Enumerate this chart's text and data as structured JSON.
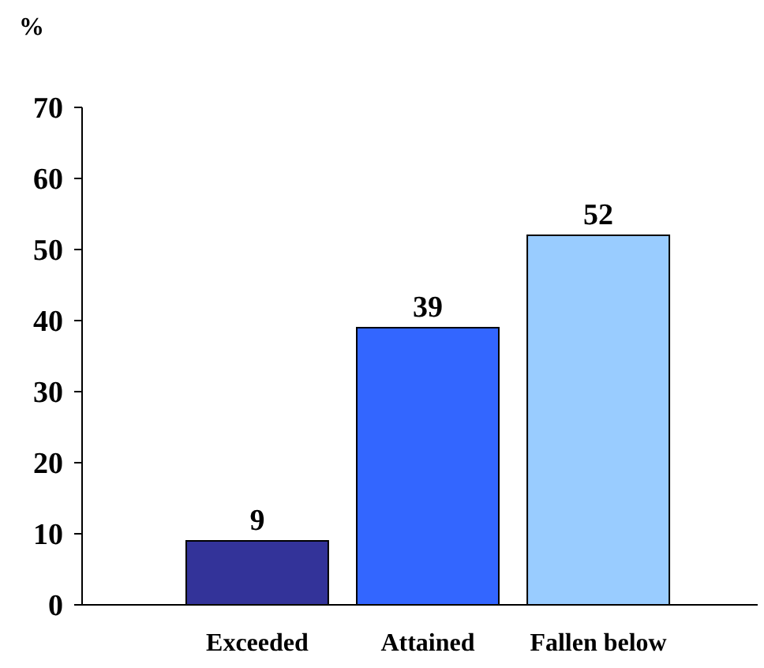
{
  "chart_data": {
    "type": "bar",
    "ylabel": "%",
    "categories": [
      "Exceeded",
      "Attained",
      "Fallen below"
    ],
    "values": [
      9,
      39,
      52
    ],
    "colors": [
      "#333399",
      "#3366ff",
      "#99ccff"
    ],
    "ylim": [
      0,
      70
    ],
    "yticks": [
      0,
      10,
      20,
      30,
      40,
      50,
      60,
      70
    ],
    "data_labels": true,
    "grid": false
  }
}
